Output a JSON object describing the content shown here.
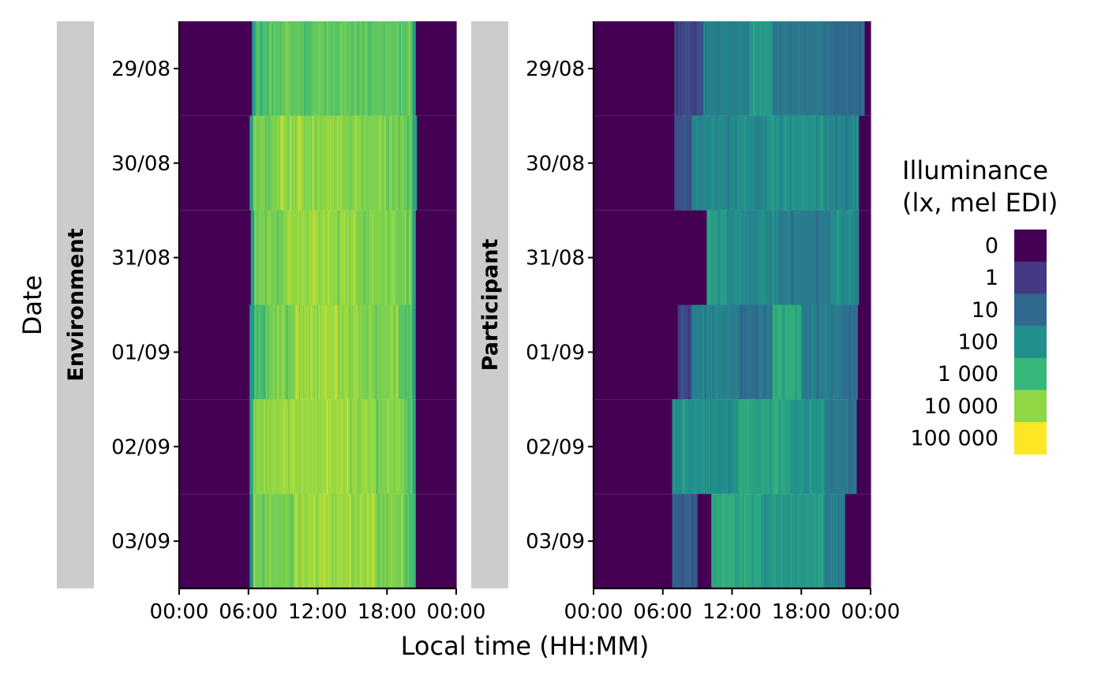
{
  "chart_data": {
    "type": "heatmap",
    "title": "",
    "xlabel": "Local time (HH:MM)",
    "ylabel": "Date",
    "x_tick_labels": [
      "00:00",
      "06:00",
      "12:00",
      "18:00",
      "00:00"
    ],
    "xlim_hours": [
      0,
      24
    ],
    "dates": [
      "29/08",
      "30/08",
      "31/08",
      "01/09",
      "02/09",
      "03/09"
    ],
    "legend": {
      "title_line1": "Illuminance",
      "title_line2": "(lx, mel EDI)",
      "labels": [
        "0",
        "1",
        "10",
        "100",
        "1 000",
        "10 000",
        "100 000"
      ],
      "colors": [
        "#440154",
        "#443a83",
        "#31688e",
        "#21908d",
        "#35b779",
        "#8fd744",
        "#fde725"
      ],
      "placement": "right"
    },
    "facets": [
      {
        "label": "Environment",
        "rows": [
          {
            "date": "29/08",
            "segments": [
              [
                0,
                6.3,
                0
              ],
              [
                6.3,
                6.6,
                3.2
              ],
              [
                6.6,
                8.5,
                4.3
              ],
              [
                8.5,
                18.5,
                4.5
              ],
              [
                18.5,
                20.2,
                4.4
              ],
              [
                20.2,
                20.5,
                3.3
              ],
              [
                20.5,
                24,
                0
              ]
            ]
          },
          {
            "date": "30/08",
            "segments": [
              [
                0,
                6.1,
                0
              ],
              [
                6.1,
                6.4,
                3.3
              ],
              [
                6.4,
                8.5,
                4.8
              ],
              [
                8.5,
                13.5,
                5.0
              ],
              [
                13.5,
                18.5,
                4.8
              ],
              [
                18.5,
                20.2,
                4.6
              ],
              [
                20.2,
                20.6,
                3.5
              ],
              [
                20.6,
                24,
                0
              ]
            ]
          },
          {
            "date": "31/08",
            "segments": [
              [
                0,
                6.2,
                0
              ],
              [
                6.2,
                6.5,
                3.3
              ],
              [
                6.5,
                9.0,
                4.7
              ],
              [
                9.0,
                15.5,
                5.0
              ],
              [
                15.5,
                19.0,
                4.8
              ],
              [
                19.0,
                20.2,
                4.6
              ],
              [
                20.2,
                20.5,
                3.4
              ],
              [
                20.5,
                24,
                0
              ]
            ]
          },
          {
            "date": "01/09",
            "segments": [
              [
                0,
                6.1,
                0
              ],
              [
                6.1,
                6.5,
                3.2
              ],
              [
                6.5,
                7.5,
                4.2
              ],
              [
                7.5,
                10.0,
                4.7
              ],
              [
                10.0,
                15.5,
                5.1
              ],
              [
                15.5,
                19.0,
                4.8
              ],
              [
                19.0,
                20.2,
                4.4
              ],
              [
                20.2,
                20.5,
                3.3
              ],
              [
                20.5,
                24,
                0
              ]
            ]
          },
          {
            "date": "02/09",
            "segments": [
              [
                0,
                6.1,
                0
              ],
              [
                6.1,
                6.4,
                3.4
              ],
              [
                6.4,
                8.0,
                4.9
              ],
              [
                8.0,
                17.0,
                5.1
              ],
              [
                17.0,
                19.5,
                4.8
              ],
              [
                19.5,
                20.2,
                4.5
              ],
              [
                20.2,
                20.5,
                3.5
              ],
              [
                20.5,
                24,
                0
              ]
            ]
          },
          {
            "date": "03/09",
            "segments": [
              [
                0,
                6.1,
                0
              ],
              [
                6.1,
                6.4,
                3.0
              ],
              [
                6.4,
                10.0,
                4.7
              ],
              [
                10.0,
                17.0,
                5.1
              ],
              [
                17.0,
                19.5,
                4.8
              ],
              [
                19.5,
                20.5,
                4.3
              ],
              [
                20.5,
                24,
                0
              ]
            ]
          }
        ]
      },
      {
        "label": "Participant",
        "rows": [
          {
            "date": "29/08",
            "segments": [
              [
                0,
                7.0,
                0
              ],
              [
                7.0,
                9.5,
                1.3
              ],
              [
                9.5,
                13.5,
                2.6
              ],
              [
                13.5,
                15.5,
                3.2
              ],
              [
                15.5,
                20.5,
                2.4
              ],
              [
                20.5,
                23.5,
                2.0
              ],
              [
                23.5,
                24,
                0
              ]
            ]
          },
          {
            "date": "30/08",
            "segments": [
              [
                0,
                7.0,
                0
              ],
              [
                7.0,
                8.5,
                1.5
              ],
              [
                8.5,
                15.0,
                2.8
              ],
              [
                15.0,
                20.0,
                3.1
              ],
              [
                20.0,
                23.0,
                2.7
              ],
              [
                23.0,
                24,
                0
              ]
            ]
          },
          {
            "date": "31/08",
            "segments": [
              [
                0,
                9.8,
                0
              ],
              [
                9.8,
                11.5,
                3.3
              ],
              [
                11.5,
                16.0,
                2.8
              ],
              [
                16.0,
                20.5,
                2.5
              ],
              [
                20.5,
                23.0,
                2.9
              ],
              [
                23.0,
                24,
                0
              ]
            ]
          },
          {
            "date": "01/09",
            "segments": [
              [
                0,
                7.3,
                0
              ],
              [
                7.3,
                8.5,
                1.3
              ],
              [
                8.5,
                12.5,
                2.6
              ],
              [
                12.5,
                15.5,
                2.2
              ],
              [
                15.5,
                18.0,
                3.7
              ],
              [
                18.0,
                21.5,
                2.5
              ],
              [
                21.5,
                22.9,
                2.2
              ],
              [
                22.9,
                24,
                0
              ]
            ]
          },
          {
            "date": "02/09",
            "segments": [
              [
                0,
                6.8,
                0
              ],
              [
                6.8,
                12.5,
                3.0
              ],
              [
                12.5,
                17.0,
                3.5
              ],
              [
                17.0,
                20.0,
                3.1
              ],
              [
                20.0,
                22.8,
                2.4
              ],
              [
                22.8,
                24,
                0
              ]
            ]
          },
          {
            "date": "03/09",
            "segments": [
              [
                0,
                6.8,
                0
              ],
              [
                6.8,
                9.0,
                1.8
              ],
              [
                9.0,
                10.2,
                0
              ],
              [
                10.2,
                14.5,
                3.6
              ],
              [
                14.5,
                20.0,
                3.2
              ],
              [
                20.0,
                21.8,
                2.5
              ],
              [
                21.8,
                24,
                0
              ]
            ]
          }
        ]
      }
    ]
  }
}
